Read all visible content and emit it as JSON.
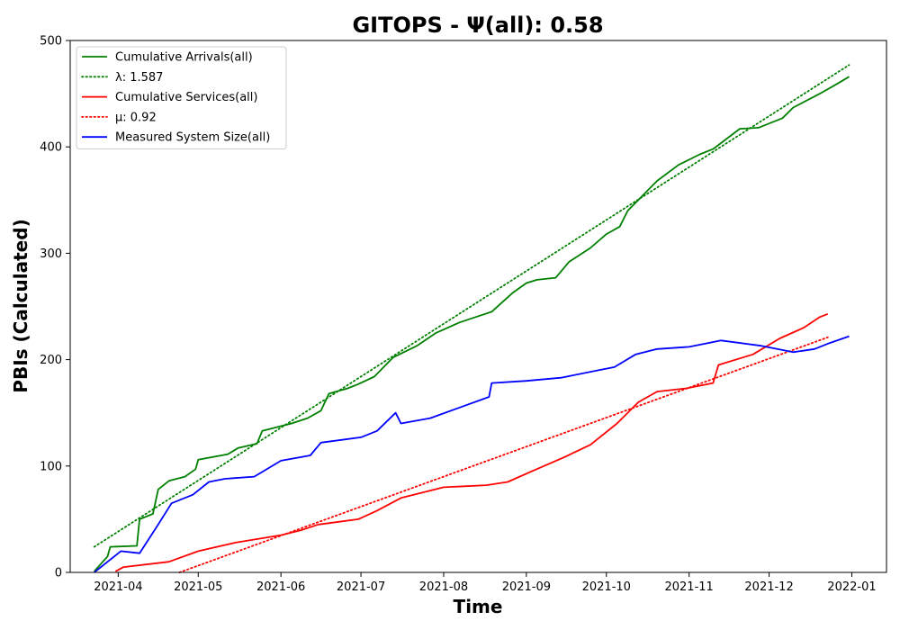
{
  "chart_data": {
    "type": "line",
    "title": "GITOPS -  Ψ(all): 0.58",
    "xlabel": "Time",
    "ylabel": "PBIs (Calculated)",
    "xlim": [
      "2021-03-14",
      "2022-01-14"
    ],
    "ylim": [
      0,
      500
    ],
    "x_ticks": [
      "2021-04-01",
      "2021-05-01",
      "2021-06-01",
      "2021-07-01",
      "2021-08-01",
      "2021-09-01",
      "2021-10-01",
      "2021-11-01",
      "2021-12-01",
      "2022-01-01"
    ],
    "x_tick_labels": [
      "2021-04",
      "2021-05",
      "2021-06",
      "2021-07",
      "2021-08",
      "2021-09",
      "2021-10",
      "2021-11",
      "2021-12",
      "2022-01"
    ],
    "y_ticks": [
      0,
      100,
      200,
      300,
      400,
      500
    ],
    "y_tick_labels": [
      "0",
      "100",
      "200",
      "300",
      "400",
      "500"
    ],
    "grid": false,
    "legend_position": "top-left",
    "series": [
      {
        "name": "Cumulative Arrivals(all)",
        "style": "solid",
        "color": "#008000",
        "x": [
          "2021-03-23",
          "2021-03-28",
          "2021-03-29",
          "2021-04-08",
          "2021-04-09",
          "2021-04-14",
          "2021-04-16",
          "2021-04-20",
          "2021-04-26",
          "2021-04-30",
          "2021-05-01",
          "2021-05-12",
          "2021-05-16",
          "2021-05-23",
          "2021-05-25",
          "2021-06-05",
          "2021-06-11",
          "2021-06-16",
          "2021-06-19",
          "2021-06-26",
          "2021-06-30",
          "2021-07-06",
          "2021-07-13",
          "2021-07-22",
          "2021-07-29",
          "2021-08-07",
          "2021-08-13",
          "2021-08-19",
          "2021-08-27",
          "2021-09-01",
          "2021-09-05",
          "2021-09-12",
          "2021-09-17",
          "2021-09-25",
          "2021-10-01",
          "2021-10-06",
          "2021-10-09",
          "2021-10-20",
          "2021-10-28",
          "2021-11-05",
          "2021-11-10",
          "2021-11-20",
          "2021-11-27",
          "2021-12-06",
          "2021-12-10",
          "2021-12-20",
          "2021-12-27",
          "2021-12-31"
        ],
        "y": [
          1,
          15,
          24,
          25,
          50,
          55,
          78,
          86,
          90,
          97,
          106,
          111,
          117,
          121,
          133,
          140,
          145,
          152,
          168,
          173,
          177,
          184,
          202,
          213,
          225,
          235,
          240,
          245,
          263,
          272,
          275,
          277,
          292,
          305,
          318,
          325,
          340,
          368,
          383,
          393,
          398,
          417,
          418,
          427,
          437,
          450,
          460,
          466
        ]
      },
      {
        "name": "λ: 1.587",
        "style": "dotted",
        "color": "#008000",
        "x": [
          "2021-03-23",
          "2021-12-31"
        ],
        "y": [
          24,
          477
        ]
      },
      {
        "name": "Cumulative Services(all)",
        "style": "solid",
        "color": "#ff0000",
        "x": [
          "2021-03-31",
          "2021-04-03",
          "2021-04-20",
          "2021-05-01",
          "2021-05-15",
          "2021-06-01",
          "2021-06-09",
          "2021-06-15",
          "2021-06-30",
          "2021-07-07",
          "2021-07-16",
          "2021-08-01",
          "2021-08-17",
          "2021-08-25",
          "2021-09-03",
          "2021-09-15",
          "2021-09-25",
          "2021-10-05",
          "2021-10-13",
          "2021-10-20",
          "2021-10-31",
          "2021-11-10",
          "2021-11-12",
          "2021-11-25",
          "2021-12-05",
          "2021-12-14",
          "2021-12-20",
          "2021-12-23"
        ],
        "y": [
          1,
          5,
          10,
          20,
          28,
          35,
          40,
          45,
          50,
          58,
          70,
          80,
          82,
          85,
          95,
          108,
          120,
          140,
          160,
          170,
          173,
          178,
          195,
          205,
          220,
          230,
          240,
          243
        ]
      },
      {
        "name": "μ: 0.92",
        "style": "dotted",
        "color": "#ff0000",
        "x": [
          "2021-04-24",
          "2021-12-23"
        ],
        "y": [
          0,
          221
        ]
      },
      {
        "name": "Measured System Size(all)",
        "style": "solid",
        "color": "#0000ff",
        "x": [
          "2021-03-23",
          "2021-03-29",
          "2021-04-02",
          "2021-04-09",
          "2021-04-16",
          "2021-04-21",
          "2021-04-29",
          "2021-05-05",
          "2021-05-11",
          "2021-05-22",
          "2021-06-01",
          "2021-06-12",
          "2021-06-16",
          "2021-07-01",
          "2021-07-07",
          "2021-07-14",
          "2021-07-16",
          "2021-07-27",
          "2021-08-07",
          "2021-08-18",
          "2021-08-19",
          "2021-09-01",
          "2021-09-14",
          "2021-09-28",
          "2021-10-04",
          "2021-10-12",
          "2021-10-20",
          "2021-11-01",
          "2021-11-13",
          "2021-11-28",
          "2021-12-10",
          "2021-12-18",
          "2021-12-23",
          "2021-12-31"
        ],
        "y": [
          0,
          12,
          20,
          18,
          45,
          65,
          73,
          85,
          88,
          90,
          105,
          110,
          122,
          127,
          133,
          150,
          140,
          145,
          155,
          165,
          178,
          180,
          183,
          190,
          193,
          205,
          210,
          212,
          218,
          213,
          207,
          210,
          215,
          222
        ]
      }
    ]
  }
}
